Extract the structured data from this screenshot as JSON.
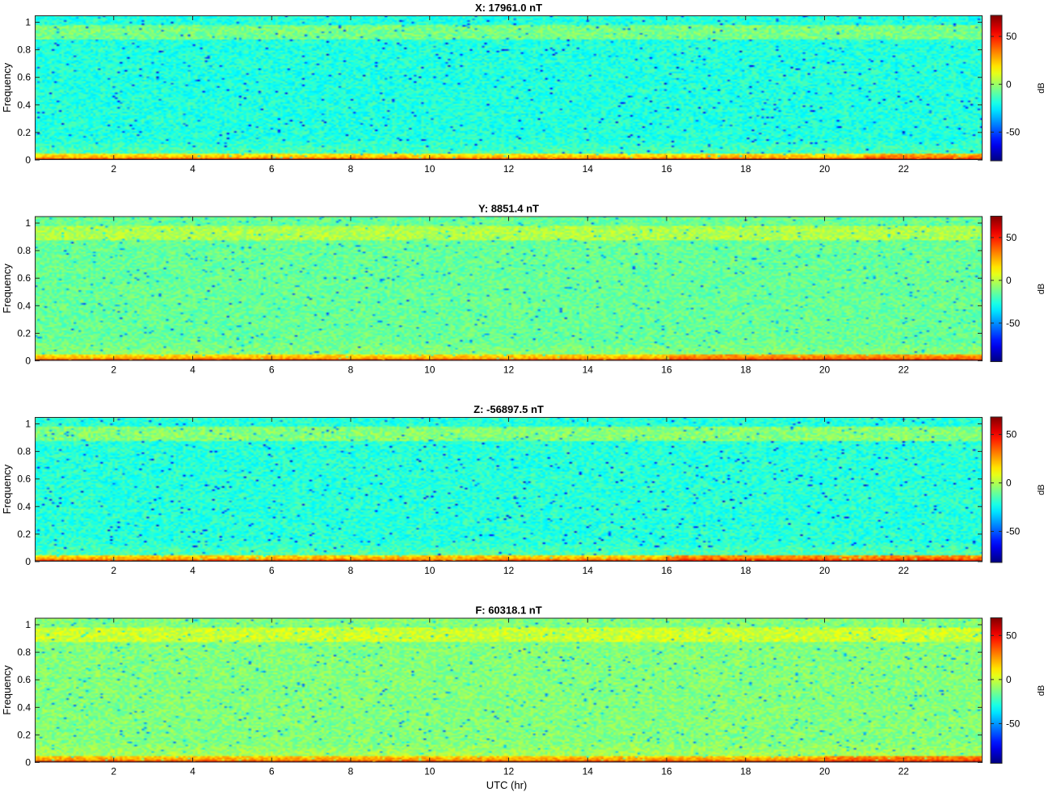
{
  "figure": {
    "xlabel": "UTC (hr)"
  },
  "colormap": {
    "name": "jet",
    "stops": [
      "#00008f",
      "#0000ff",
      "#00ffff",
      "#ffff00",
      "#ff0000",
      "#800000"
    ]
  },
  "chart_data": [
    {
      "type": "heatmap",
      "title": "X: 17961.0 nT",
      "ylabel": "Frequency",
      "xlim": [
        0,
        24
      ],
      "ylim": [
        0,
        1.05
      ],
      "xticks": [
        2,
        4,
        6,
        8,
        10,
        12,
        14,
        16,
        18,
        20,
        22
      ],
      "yticks": [
        "0",
        "0.2",
        "0.4",
        "0.6",
        "0.8",
        "1"
      ],
      "colorbar": {
        "label": "dB",
        "range": [
          -80,
          72
        ],
        "ticks": [
          "50",
          "0",
          "-50"
        ]
      },
      "background_db": -18,
      "band_db": -5,
      "band_freq": [
        0.88,
        0.98
      ],
      "lowfreq_db": 65,
      "low_rise_hours": [
        21,
        24
      ]
    },
    {
      "type": "heatmap",
      "title": "Y: 8851.4 nT",
      "ylabel": "Frequency",
      "xlim": [
        0,
        24
      ],
      "ylim": [
        0,
        1.05
      ],
      "xticks": [
        2,
        4,
        6,
        8,
        10,
        12,
        14,
        16,
        18,
        20,
        22
      ],
      "yticks": [
        "0",
        "0.2",
        "0.4",
        "0.6",
        "0.8",
        "1"
      ],
      "colorbar": {
        "label": "dB",
        "range": [
          -95,
          75
        ],
        "ticks": [
          "50",
          "0",
          "-50"
        ]
      },
      "background_db": -14,
      "band_db": -2,
      "band_freq": [
        0.88,
        0.98
      ],
      "lowfreq_db": 70,
      "low_rise_hours": [
        16,
        24
      ]
    },
    {
      "type": "heatmap",
      "title": "Z: -56897.5 nT",
      "ylabel": "Frequency",
      "xlim": [
        0,
        24
      ],
      "ylim": [
        0,
        1.05
      ],
      "xticks": [
        2,
        4,
        6,
        8,
        10,
        12,
        14,
        16,
        18,
        20,
        22
      ],
      "yticks": [
        "0",
        "0.2",
        "0.4",
        "0.6",
        "0.8",
        "1"
      ],
      "colorbar": {
        "label": "dB",
        "range": [
          -82,
          68
        ],
        "ticks": [
          "50",
          "0",
          "-50"
        ]
      },
      "background_db": -20,
      "band_db": -6,
      "band_freq": [
        0.88,
        0.98
      ],
      "lowfreq_db": 62,
      "low_rise_hours": [
        16,
        24
      ]
    },
    {
      "type": "heatmap",
      "title": "F: 60318.1 nT",
      "ylabel": "Frequency",
      "xlim": [
        0,
        24
      ],
      "ylim": [
        0,
        1.05
      ],
      "xticks": [
        2,
        4,
        6,
        8,
        10,
        12,
        14,
        16,
        18,
        20,
        22
      ],
      "yticks": [
        "0",
        "0.2",
        "0.4",
        "0.6",
        "0.8",
        "1"
      ],
      "colorbar": {
        "label": "dB",
        "range": [
          -95,
          70
        ],
        "ticks": [
          "50",
          "0",
          "-50"
        ]
      },
      "background_db": -12,
      "band_db": 0,
      "band_freq": [
        0.88,
        0.98
      ],
      "lowfreq_db": 66,
      "low_rise_hours": [
        20,
        24
      ]
    }
  ]
}
